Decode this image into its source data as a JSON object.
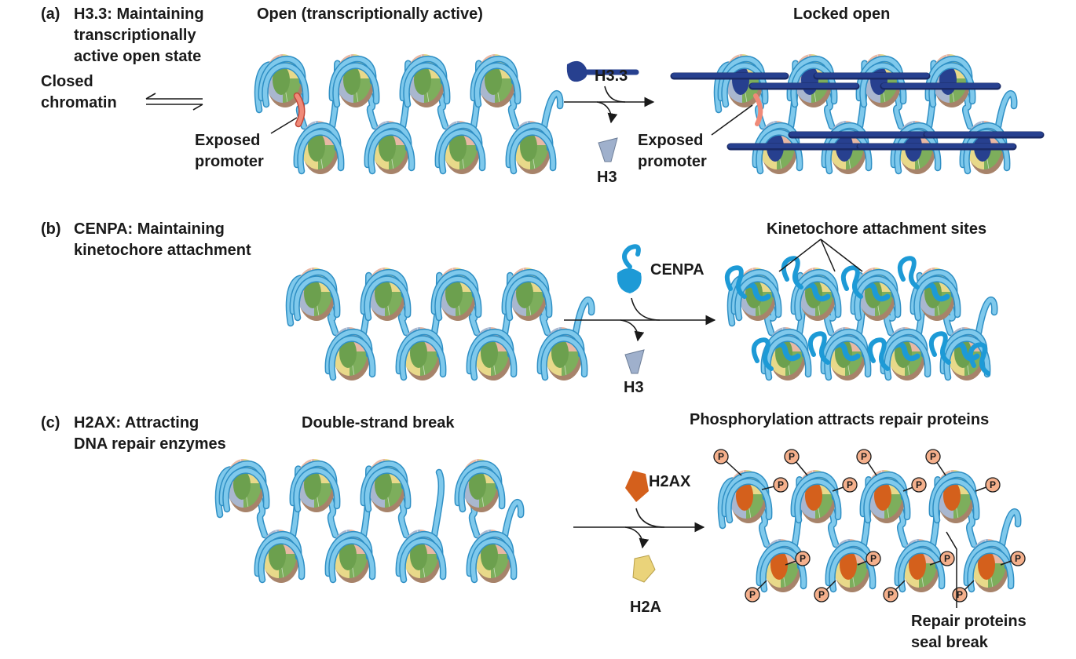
{
  "panel_a": {
    "heading": [
      "(a)",
      "H3.3: Maintaining",
      "transcriptionally",
      "active open state"
    ],
    "closed_label": [
      "Closed",
      "chromatin"
    ],
    "open_title": "Open (transcriptionally active)",
    "locked_title": "Locked open",
    "exposed_left": [
      "Exposed",
      "promoter"
    ],
    "exposed_right": [
      "Exposed",
      "promoter"
    ],
    "incoming": "H3.3",
    "outgoing": "H3"
  },
  "panel_b": {
    "heading": [
      "(b)",
      "CENPA: Maintaining",
      "kinetochore attachment"
    ],
    "right_title": "Kinetochore attachment sites",
    "incoming": "CENPA",
    "outgoing": "H3"
  },
  "panel_c": {
    "heading": [
      "(c)",
      "H2AX: Attracting",
      "DNA repair enzymes"
    ],
    "left_title": "Double-strand break",
    "right_title": "Phosphorylation attracts repair proteins",
    "incoming": "H2AX",
    "outgoing": "H2A",
    "phospho": "P",
    "repair": [
      "Repair proteins",
      "seal break"
    ]
  },
  "colors": {
    "dna": "#7fc9ec",
    "dna_edge": "#2f8fc4",
    "h3_3": "#27408f",
    "cenpa": "#1d9ad6",
    "h2ax": "#d4601c",
    "promoter": "#f08a78",
    "phospho": "#f5b08c"
  }
}
